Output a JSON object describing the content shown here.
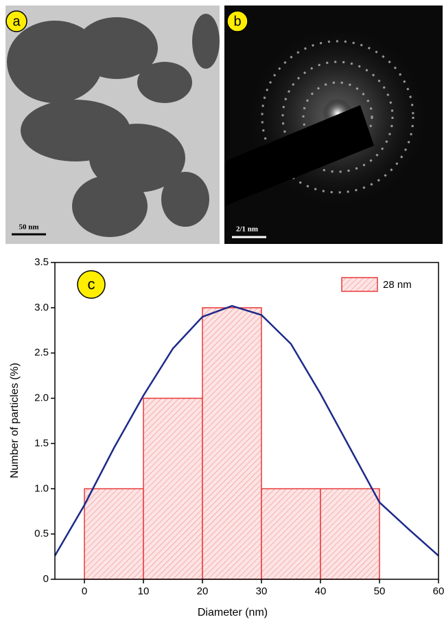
{
  "panels": {
    "a": {
      "label": "a",
      "scale_bar": "50 nm"
    },
    "b": {
      "label": "b",
      "scale_bar": "2/1 nm"
    }
  },
  "chart_data": {
    "type": "histogram",
    "panel_label": "c",
    "x_label": "Diameter (nm)",
    "y_label": "Number of particles (%)",
    "bins": [
      0,
      10,
      20,
      30,
      40,
      50
    ],
    "series": [
      {
        "name": "28 nm",
        "color": "#e8393b",
        "values": [
          1,
          2,
          3,
          1,
          1
        ]
      }
    ],
    "fit": {
      "color": "#1c2a8a",
      "x": [
        -5,
        0,
        5,
        10,
        15,
        20,
        25,
        30,
        35,
        40,
        45,
        50,
        55,
        60
      ],
      "values": [
        0.26,
        0.82,
        1.45,
        2.03,
        2.55,
        2.9,
        3.02,
        2.92,
        2.6,
        2.05,
        1.45,
        0.85,
        0.55,
        0.26
      ]
    },
    "xlim": [
      -5,
      60
    ],
    "xticks": [
      0,
      10,
      20,
      30,
      40,
      50,
      60
    ],
    "ylim": [
      0,
      3.5
    ],
    "yticks": [
      0,
      0.5,
      {
        "value": 1,
        "label": "1.0"
      },
      1.5,
      {
        "value": 2,
        "label": "2.0"
      },
      2.5,
      {
        "value": 3,
        "label": "3.0"
      },
      3.5
    ],
    "legend": "upper right"
  }
}
